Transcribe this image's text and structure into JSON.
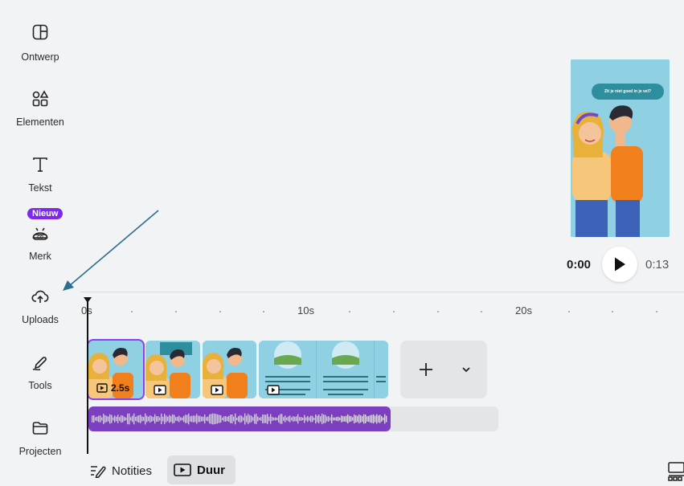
{
  "sidebar": {
    "items": [
      {
        "label": "Ontwerp",
        "icon": "layout-icon"
      },
      {
        "label": "Elementen",
        "icon": "shapes-icon"
      },
      {
        "label": "Tekst",
        "icon": "text-icon"
      },
      {
        "label": "Merk",
        "icon": "brand-icon",
        "badge": "Nieuw"
      },
      {
        "label": "Uploads",
        "icon": "cloud-upload-icon"
      },
      {
        "label": "Tools",
        "icon": "pen-icon"
      },
      {
        "label": "Projecten",
        "icon": "folder-icon"
      }
    ]
  },
  "preview": {
    "speech_bubble": "Zit je niet goed in je vel?"
  },
  "playback": {
    "current_time": "0:00",
    "total_time": "0:13"
  },
  "ruler": {
    "labels": [
      "0s",
      "10s",
      "20s"
    ]
  },
  "timeline": {
    "clips": [
      {
        "duration_label": "2.5s",
        "selected": true
      },
      {
        "duration_label": ""
      },
      {
        "duration_label": ""
      },
      {
        "duration_label": ""
      }
    ]
  },
  "footer": {
    "notes_label": "Notities",
    "duration_label": "Duur"
  },
  "colors": {
    "accent": "#8b3ef5",
    "badge": "#7c2ae8",
    "audio": "#7b3fbf",
    "preview_bg": "#8fd0e3",
    "annotation_arrow": "#2e6e8e"
  }
}
